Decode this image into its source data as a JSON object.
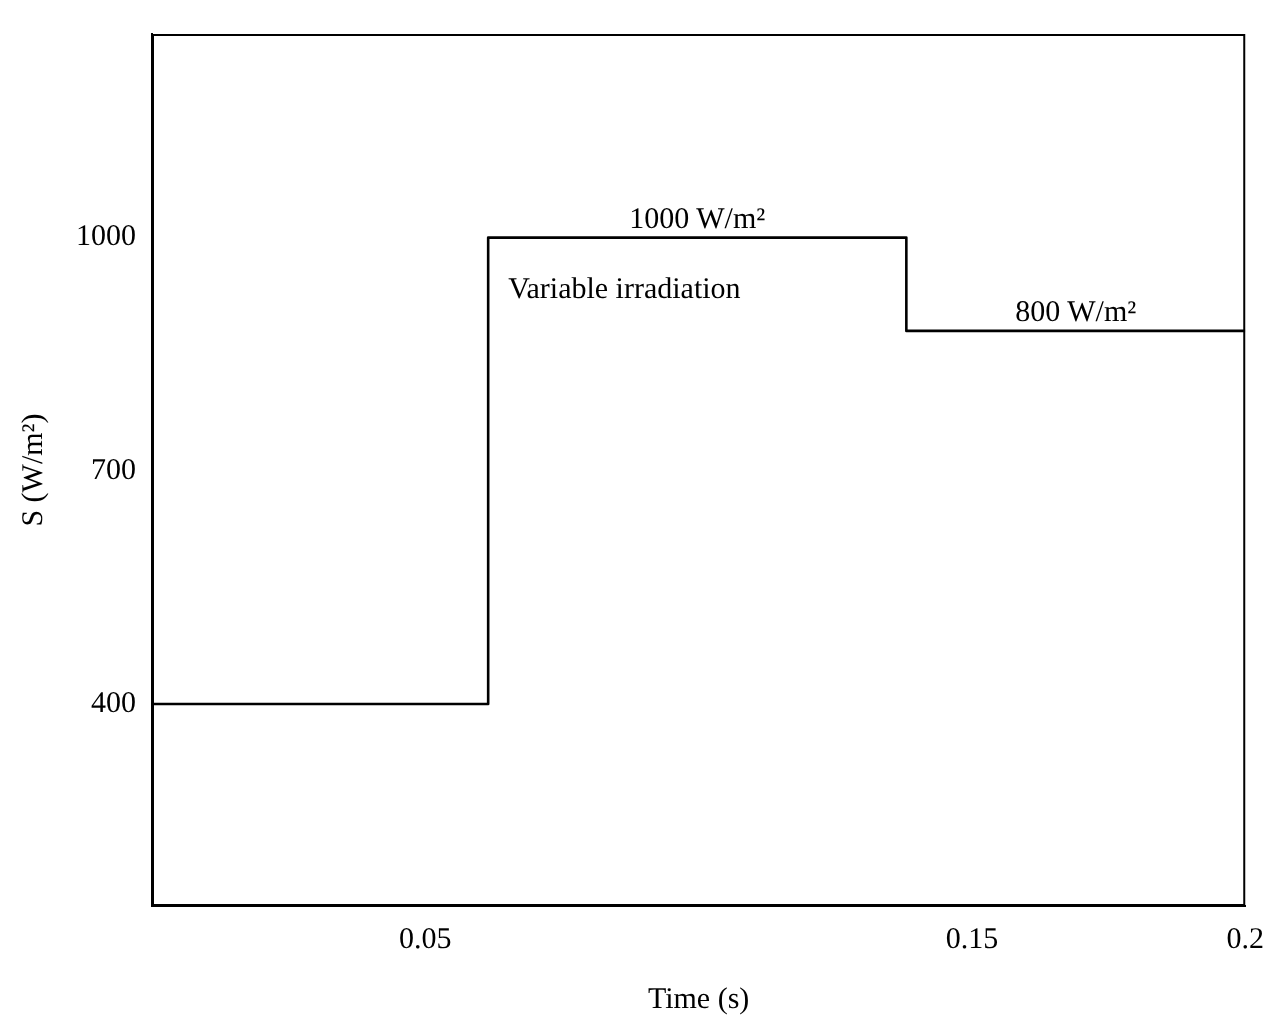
{
  "chart_data": {
    "type": "step",
    "xlabel": "Time (s)",
    "ylabel": "S (W/m²)",
    "x": [
      0,
      0.0615,
      0.138,
      0.2
    ],
    "series": [
      {
        "color": "#000000",
        "values": [
          400,
          1000,
          880,
          880
        ]
      }
    ],
    "xlim": [
      0,
      0.2
    ],
    "xticks": [
      0.05,
      0.15,
      0.2
    ],
    "ylim": [
      140,
      1262
    ],
    "yticks": [
      400,
      700,
      1000
    ],
    "legend": false,
    "grid": false,
    "annotations": [
      "1000 W/m²",
      "Variable irradiation",
      "800 W/m²"
    ]
  }
}
